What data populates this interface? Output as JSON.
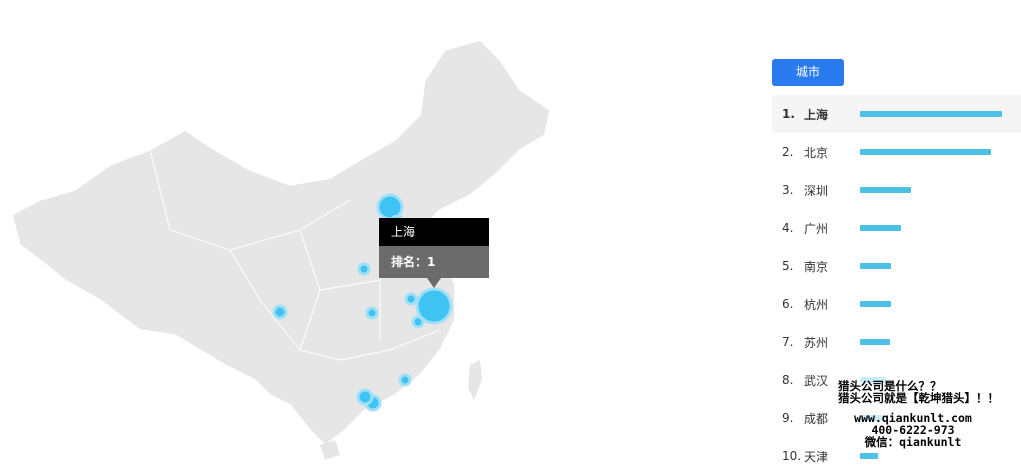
{
  "tab_label": "城市",
  "tooltip": {
    "city": "上海",
    "rank_text": "排名：1"
  },
  "colors": {
    "accent": "#2a7bef",
    "bar": "#4bc1e8",
    "map_fill": "#e6e6e6",
    "bubble": "#3fc3f3"
  },
  "cities": [
    {
      "rank": "1.",
      "name": "上海",
      "value": 100
    },
    {
      "rank": "2.",
      "name": "北京",
      "value": 92
    },
    {
      "rank": "3.",
      "name": "深圳",
      "value": 36
    },
    {
      "rank": "4.",
      "name": "广州",
      "value": 29
    },
    {
      "rank": "5.",
      "name": "南京",
      "value": 22
    },
    {
      "rank": "6.",
      "name": "杭州",
      "value": 22
    },
    {
      "rank": "7.",
      "name": "苏州",
      "value": 21
    },
    {
      "rank": "8.",
      "name": "武汉",
      "value": 18
    },
    {
      "rank": "9.",
      "name": "成都",
      "value": 16
    },
    {
      "rank": "10.",
      "name": "天津",
      "value": 13
    }
  ],
  "watermark": {
    "line1": "猎头公司是什么？？",
    "line2": "猎头公司就是【乾坤猎头】！！",
    "line3": "www.qiankunlt.com",
    "line4": "400-6222-973",
    "line5": "微信：qiankunlt"
  }
}
